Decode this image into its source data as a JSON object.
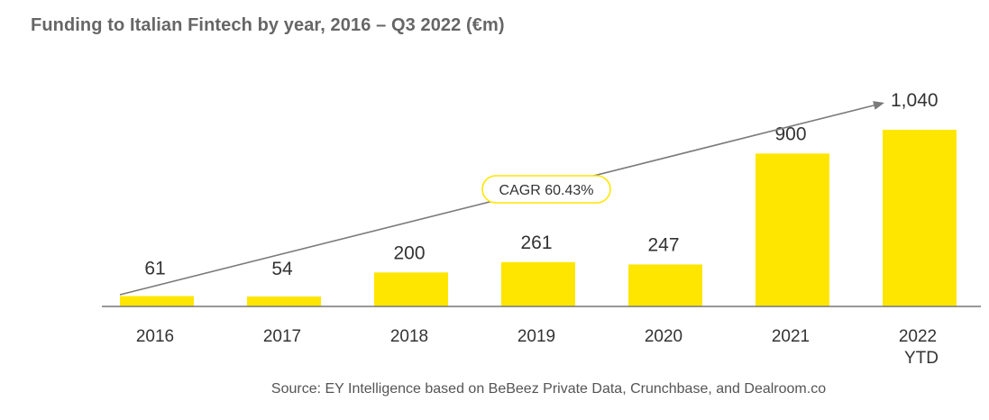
{
  "title": "Funding to Italian Fintech by year, 2016 – Q3 2022 (€m)",
  "source": "Source: EY Intelligence based on BeBeez Private Data, Crunchbase, and Dealroom.co",
  "colors": {
    "bar": "#ffe600",
    "text": "#333333",
    "title": "#666666",
    "trend": "#7a7a7a"
  },
  "chart_data": {
    "type": "bar",
    "title": "Funding to Italian Fintech by year, 2016 – Q3 2022 (€m)",
    "xlabel": "",
    "ylabel": "",
    "ylim": [
      0,
      1100
    ],
    "grid": false,
    "categories": [
      {
        "label": "2016",
        "sublabel": ""
      },
      {
        "label": "2017",
        "sublabel": ""
      },
      {
        "label": "2018",
        "sublabel": ""
      },
      {
        "label": "2019",
        "sublabel": ""
      },
      {
        "label": "2020",
        "sublabel": ""
      },
      {
        "label": "2021",
        "sublabel": ""
      },
      {
        "label": "2022",
        "sublabel": "YTD"
      }
    ],
    "values": [
      61,
      54,
      200,
      261,
      247,
      900,
      1040
    ],
    "value_labels": [
      "61",
      "54",
      "200",
      "261",
      "247",
      "900",
      "1,040"
    ],
    "annotation": {
      "text": "CAGR 60.43%",
      "from_category": "2016",
      "to_category": "2022"
    }
  }
}
